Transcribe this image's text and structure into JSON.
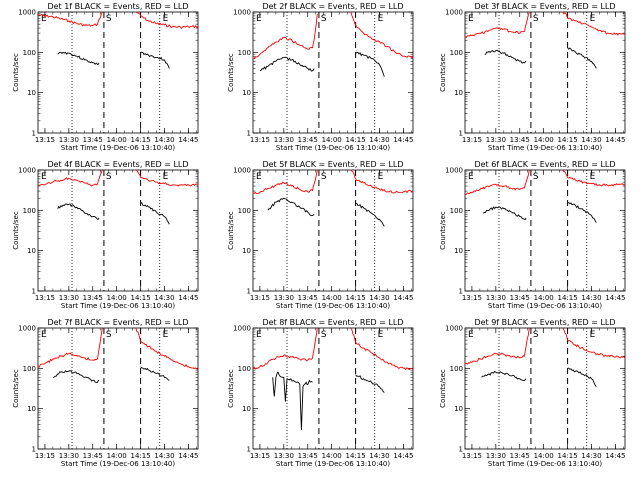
{
  "app": "RHESSI detector lightcurves",
  "colors": {
    "events": "#000000",
    "lld": "#ff0000",
    "axis": "#000000",
    "background": "#ffffff"
  },
  "chart_data": {
    "type": "line",
    "layout": "3x3 grid of panels, one per detector",
    "ylabel": "Counts/sec",
    "xlabel": "Start Time (19-Dec-06 13:10:40)",
    "x_tick_labels": [
      "13:15",
      "13:30",
      "13:45",
      "14:00",
      "14:15",
      "14:30",
      "14:45"
    ],
    "xlim": [
      "13:10:40",
      "14:51:00"
    ],
    "y_scale": "log",
    "ylim": [
      1,
      1000
    ],
    "y_tick_labels": [
      "1",
      "10",
      "100",
      "1000"
    ],
    "grid": false,
    "legend": "none",
    "markers": {
      "eclipse_start": "E",
      "saa": "S",
      "eclipse_end": "E"
    },
    "panels": [
      {
        "title": "Det 1f BLACK = Events, RED = LLD",
        "dotted_lines": [
          "13:32",
          "14:27"
        ],
        "dashed_lines": [
          "13:52",
          "14:15"
        ],
        "series": [
          {
            "name": "LLD",
            "color": "red",
            "x": [
              "13:10:40",
              "13:15",
              "13:20",
              "13:25",
              "13:30",
              "13:35",
              "13:40",
              "13:45",
              "13:48",
              "13:49",
              "13:51",
              "14:12",
              "14:14",
              "14:15",
              "14:20",
              "14:25",
              "14:30",
              "14:35",
              "14:40",
              "14:45",
              "14:51"
            ],
            "y": [
              850,
              800,
              760,
              680,
              600,
              520,
              470,
              460,
              500,
              650,
              1000,
              1000,
              920,
              800,
              600,
              520,
              480,
              430,
              420,
              430,
              440
            ]
          },
          {
            "name": "Events",
            "color": "black",
            "x": [
              "13:23",
              "13:25",
              "13:30",
              "13:35",
              "13:40",
              "13:45",
              "13:48",
              "13:49",
              "14:15",
              "14:20",
              "14:25",
              "14:30",
              "14:33"
            ],
            "y": [
              90,
              100,
              95,
              80,
              65,
              55,
              50,
              55,
              100,
              85,
              75,
              65,
              40
            ]
          }
        ]
      },
      {
        "title": "Det 2f BLACK = Events, RED = LLD",
        "dotted_lines": [
          "13:32",
          "14:27"
        ],
        "dashed_lines": [
          "13:52",
          "14:15"
        ],
        "series": [
          {
            "name": "LLD",
            "color": "red",
            "x": [
              "13:10:40",
              "13:15",
              "13:20",
              "13:25",
              "13:30",
              "13:35",
              "13:40",
              "13:45",
              "13:48",
              "13:49",
              "13:51",
              "14:12",
              "14:14",
              "14:15",
              "14:20",
              "14:25",
              "14:30",
              "14:35",
              "14:40",
              "14:45",
              "14:51"
            ],
            "y": [
              70,
              90,
              130,
              180,
              230,
              200,
              150,
              120,
              130,
              200,
              900,
              1000,
              600,
              480,
              300,
              220,
              180,
              140,
              100,
              80,
              75
            ]
          },
          {
            "name": "Events",
            "color": "black",
            "x": [
              "13:15",
              "13:20",
              "13:25",
              "13:30",
              "13:35",
              "13:40",
              "13:45",
              "13:48",
              "13:49",
              "14:15",
              "14:20",
              "14:25",
              "14:30",
              "14:33"
            ],
            "y": [
              35,
              45,
              60,
              75,
              65,
              50,
              40,
              35,
              40,
              100,
              85,
              70,
              50,
              25
            ]
          }
        ]
      },
      {
        "title": "Det 3f BLACK = Events, RED = LLD",
        "dotted_lines": [
          "13:32",
          "14:27"
        ],
        "dashed_lines": [
          "13:52",
          "14:15"
        ],
        "series": [
          {
            "name": "LLD",
            "color": "red",
            "x": [
              "13:10:40",
              "13:15",
              "13:20",
              "13:25",
              "13:30",
              "13:35",
              "13:40",
              "13:45",
              "13:48",
              "13:49",
              "13:51",
              "14:12",
              "14:14",
              "14:15",
              "14:20",
              "14:25",
              "14:30",
              "14:35",
              "14:40",
              "14:45",
              "14:51"
            ],
            "y": [
              250,
              260,
              300,
              330,
              400,
              380,
              320,
              300,
              330,
              500,
              1000,
              1000,
              900,
              700,
              600,
              520,
              420,
              350,
              300,
              280,
              280
            ]
          },
          {
            "name": "Events",
            "color": "black",
            "x": [
              "13:23",
              "13:25",
              "13:30",
              "13:35",
              "13:40",
              "13:45",
              "13:48",
              "13:49",
              "14:15",
              "14:20",
              "14:25",
              "14:30",
              "14:33"
            ],
            "y": [
              90,
              100,
              110,
              95,
              75,
              60,
              55,
              60,
              130,
              100,
              80,
              60,
              40
            ]
          }
        ]
      },
      {
        "title": "Det 4f BLACK = Events, RED = LLD",
        "dotted_lines": [
          "13:32",
          "14:27"
        ],
        "dashed_lines": [
          "13:52",
          "14:15"
        ],
        "series": [
          {
            "name": "LLD",
            "color": "red",
            "x": [
              "13:10:40",
              "13:15",
              "13:20",
              "13:25",
              "13:30",
              "13:35",
              "13:40",
              "13:45",
              "13:48",
              "13:49",
              "13:51",
              "14:12",
              "14:14",
              "14:15",
              "14:20",
              "14:25",
              "14:30",
              "14:35",
              "14:40",
              "14:45",
              "14:51"
            ],
            "y": [
              400,
              430,
              500,
              560,
              620,
              560,
              480,
              420,
              450,
              600,
              1000,
              1000,
              800,
              650,
              550,
              500,
              460,
              430,
              420,
              430,
              430
            ]
          },
          {
            "name": "Events",
            "color": "black",
            "x": [
              "13:23",
              "13:25",
              "13:30",
              "13:35",
              "13:40",
              "13:45",
              "13:48",
              "13:49",
              "14:15",
              "14:20",
              "14:25",
              "14:30",
              "14:33"
            ],
            "y": [
              110,
              130,
              140,
              120,
              85,
              70,
              60,
              65,
              150,
              120,
              90,
              70,
              45
            ]
          }
        ]
      },
      {
        "title": "Det 5f BLACK = Events, RED = LLD",
        "dotted_lines": [
          "13:32",
          "14:27"
        ],
        "dashed_lines": [
          "13:52",
          "14:15"
        ],
        "series": [
          {
            "name": "LLD",
            "color": "red",
            "x": [
              "13:10:40",
              "13:15",
              "13:20",
              "13:25",
              "13:30",
              "13:35",
              "13:40",
              "13:45",
              "13:48",
              "13:49",
              "13:51",
              "14:12",
              "14:14",
              "14:15",
              "14:20",
              "14:25",
              "14:30",
              "14:35",
              "14:40",
              "14:45",
              "14:51"
            ],
            "y": [
              260,
              280,
              350,
              420,
              480,
              400,
              330,
              290,
              310,
              450,
              1000,
              1000,
              800,
              600,
              480,
              400,
              330,
              290,
              280,
              290,
              300
            ]
          },
          {
            "name": "Events",
            "color": "black",
            "x": [
              "13:20",
              "13:25",
              "13:30",
              "13:35",
              "13:40",
              "13:45",
              "13:48",
              "13:49",
              "14:15",
              "14:20",
              "14:25",
              "14:30",
              "14:33"
            ],
            "y": [
              100,
              160,
              200,
              160,
              120,
              90,
              75,
              80,
              150,
              115,
              85,
              60,
              40
            ]
          }
        ]
      },
      {
        "title": "Det 6f BLACK = Events, RED = LLD",
        "dotted_lines": [
          "13:32",
          "14:27"
        ],
        "dashed_lines": [
          "13:52",
          "14:15"
        ],
        "series": [
          {
            "name": "LLD",
            "color": "red",
            "x": [
              "13:10:40",
              "13:15",
              "13:20",
              "13:25",
              "13:30",
              "13:35",
              "13:40",
              "13:45",
              "13:48",
              "13:49",
              "13:51",
              "14:12",
              "14:14",
              "14:15",
              "14:20",
              "14:25",
              "14:30",
              "14:35",
              "14:40",
              "14:45",
              "14:51"
            ],
            "y": [
              250,
              270,
              330,
              400,
              440,
              400,
              350,
              330,
              360,
              500,
              1000,
              1000,
              800,
              650,
              560,
              500,
              460,
              430,
              420,
              430,
              440
            ]
          },
          {
            "name": "Events",
            "color": "black",
            "x": [
              "13:22",
              "13:25",
              "13:30",
              "13:35",
              "13:40",
              "13:45",
              "13:48",
              "13:49",
              "14:15",
              "14:20",
              "14:25",
              "14:30",
              "14:33"
            ],
            "y": [
              85,
              100,
              120,
              110,
              90,
              70,
              60,
              65,
              160,
              130,
              100,
              75,
              50
            ]
          }
        ]
      },
      {
        "title": "Det 7f BLACK = Events, RED = LLD",
        "dotted_lines": [
          "13:32",
          "14:27"
        ],
        "dashed_lines": [
          "13:52",
          "14:15"
        ],
        "series": [
          {
            "name": "LLD",
            "color": "red",
            "x": [
              "13:10:40",
              "13:15",
              "13:20",
              "13:25",
              "13:30",
              "13:35",
              "13:40",
              "13:45",
              "13:48",
              "13:49",
              "13:51",
              "14:12",
              "14:14",
              "14:15",
              "14:20",
              "14:25",
              "14:30",
              "14:35",
              "14:40",
              "14:45",
              "14:51"
            ],
            "y": [
              110,
              130,
              170,
              200,
              230,
              210,
              180,
              160,
              170,
              300,
              1000,
              1000,
              650,
              450,
              350,
              260,
              200,
              160,
              130,
              110,
              95
            ]
          },
          {
            "name": "Events",
            "color": "black",
            "x": [
              "13:20",
              "13:25",
              "13:30",
              "13:35",
              "13:40",
              "13:45",
              "13:48",
              "13:49",
              "14:15",
              "14:20",
              "14:25",
              "14:30",
              "14:33"
            ],
            "y": [
              60,
              80,
              85,
              75,
              60,
              50,
              45,
              50,
              110,
              90,
              75,
              60,
              50
            ]
          }
        ]
      },
      {
        "title": "Det 8f BLACK = Events, RED = LLD",
        "dotted_lines": [
          "13:32",
          "14:27"
        ],
        "dashed_lines": [
          "13:52",
          "14:15"
        ],
        "series": [
          {
            "name": "LLD",
            "color": "red",
            "x": [
              "13:10:40",
              "13:15",
              "13:20",
              "13:25",
              "13:30",
              "13:35",
              "13:40",
              "13:45",
              "13:48",
              "13:49",
              "13:51",
              "14:12",
              "14:14",
              "14:15",
              "14:20",
              "14:25",
              "14:30",
              "14:35",
              "14:40",
              "14:45",
              "14:51"
            ],
            "y": [
              100,
              110,
              140,
              180,
              210,
              190,
              170,
              160,
              180,
              300,
              1000,
              1000,
              650,
              450,
              320,
              240,
              180,
              140,
              110,
              100,
              95
            ]
          },
          {
            "name": "Events",
            "color": "black",
            "x": [
              "13:23",
              "13:24",
              "13:25",
              "13:26",
              "13:27",
              "13:30",
              "13:31",
              "13:32",
              "13:36",
              "13:38",
              "13:40",
              "13:41",
              "13:42",
              "13:44",
              "13:45",
              "13:46",
              "13:48",
              "14:15",
              "14:20",
              "14:25",
              "14:30",
              "14:33"
            ],
            "y": [
              60,
              20,
              60,
              80,
              70,
              60,
              15,
              55,
              50,
              45,
              40,
              3,
              35,
              45,
              40,
              50,
              45,
              70,
              55,
              45,
              35,
              25
            ]
          }
        ]
      },
      {
        "title": "Det 9f BLACK = Events, RED = LLD",
        "dotted_lines": [
          "13:32",
          "14:27"
        ],
        "dashed_lines": [
          "13:52",
          "14:15"
        ],
        "series": [
          {
            "name": "LLD",
            "color": "red",
            "x": [
              "13:10:40",
              "13:15",
              "13:20",
              "13:25",
              "13:30",
              "13:35",
              "13:40",
              "13:45",
              "13:48",
              "13:49",
              "13:51",
              "14:12",
              "14:14",
              "14:15",
              "14:20",
              "14:25",
              "14:30",
              "14:35",
              "14:40",
              "14:45",
              "14:51"
            ],
            "y": [
              130,
              140,
              170,
              200,
              230,
              220,
              190,
              180,
              200,
              350,
              1000,
              1000,
              700,
              500,
              380,
              300,
              250,
              220,
              200,
              190,
              180
            ]
          },
          {
            "name": "Events",
            "color": "black",
            "x": [
              "13:21",
              "13:25",
              "13:30",
              "13:35",
              "13:40",
              "13:45",
              "13:48",
              "13:49",
              "14:15",
              "14:20",
              "14:25",
              "14:30",
              "14:33"
            ],
            "y": [
              60,
              70,
              80,
              75,
              65,
              55,
              50,
              55,
              100,
              85,
              70,
              55,
              35
            ]
          }
        ]
      }
    ]
  }
}
